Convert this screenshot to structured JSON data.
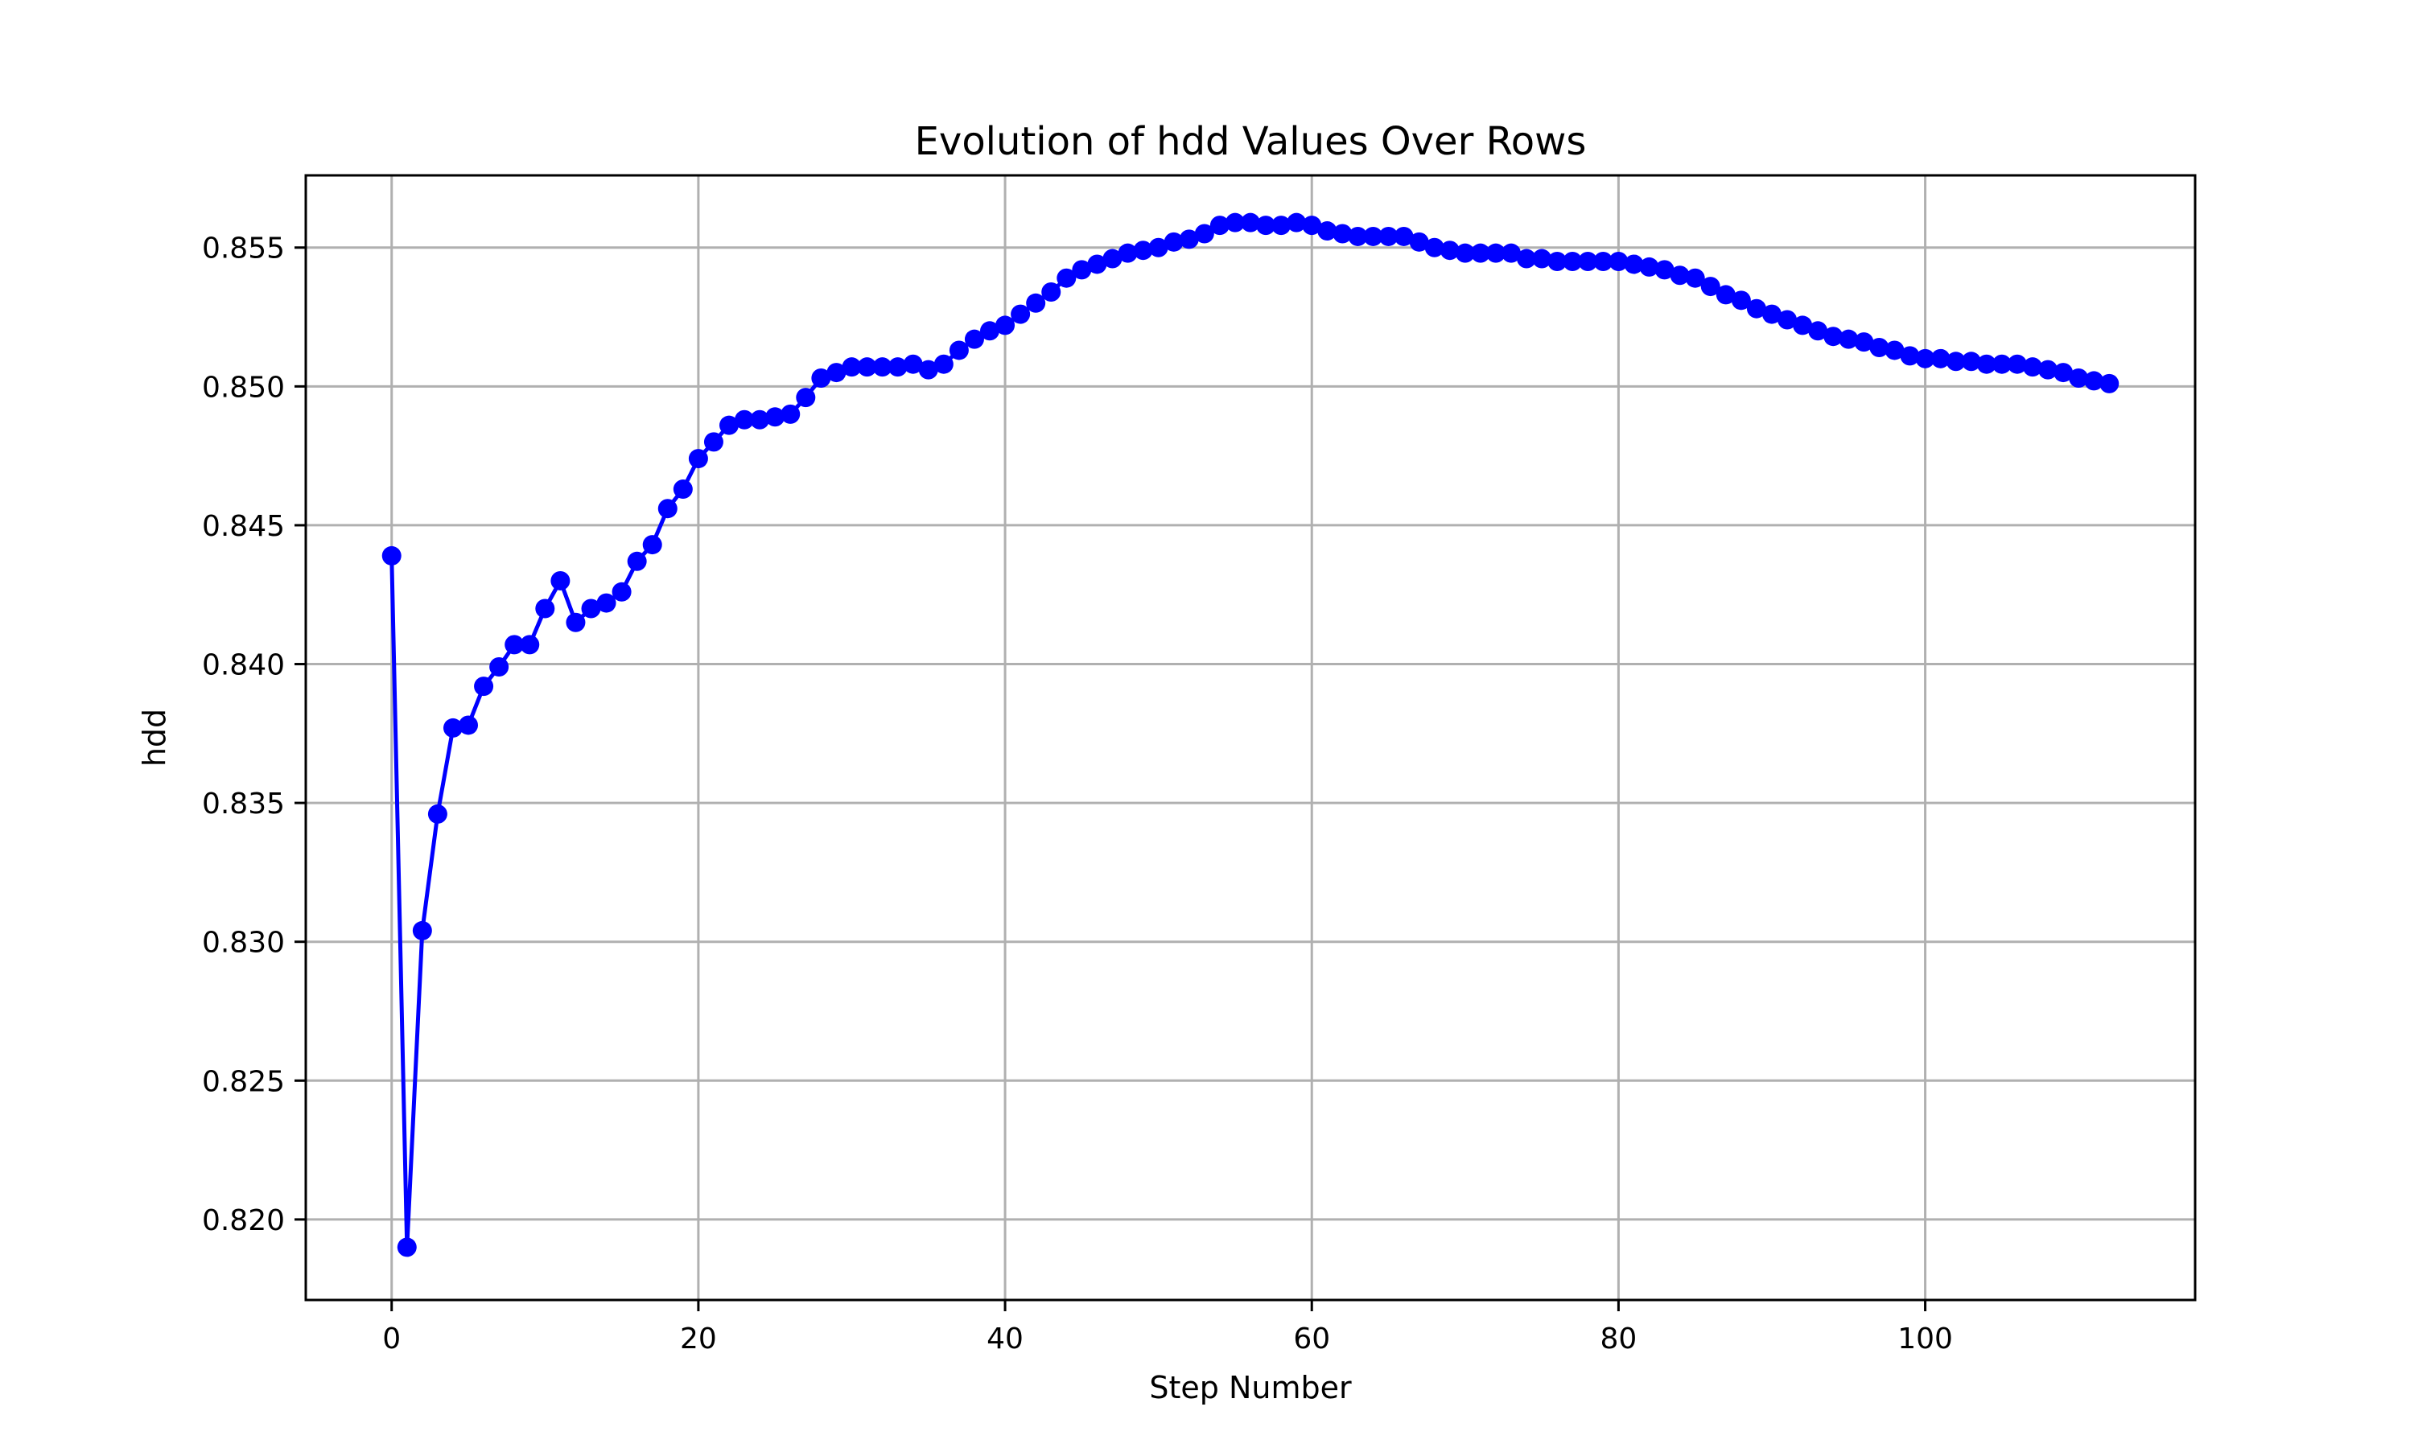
{
  "chart_data": {
    "type": "line",
    "title": "Evolution of hdd Values Over Rows",
    "xlabel": "Step Number",
    "ylabel": "hdd",
    "xlim": [
      -5.6,
      117.6
    ],
    "ylim": [
      0.8171,
      0.8576
    ],
    "xticks": [
      0,
      20,
      40,
      60,
      80,
      100
    ],
    "yticks": [
      0.82,
      0.825,
      0.83,
      0.835,
      0.84,
      0.845,
      0.85,
      0.855
    ],
    "xtick_labels": [
      "0",
      "20",
      "40",
      "60",
      "80",
      "100"
    ],
    "ytick_labels": [
      "0.820",
      "0.825",
      "0.830",
      "0.835",
      "0.840",
      "0.845",
      "0.850",
      "0.855"
    ],
    "grid": true,
    "series": [
      {
        "color": "#0000ff",
        "marker": "circle",
        "x": [
          0,
          1,
          2,
          3,
          4,
          5,
          6,
          7,
          8,
          9,
          10,
          11,
          12,
          13,
          14,
          15,
          16,
          17,
          18,
          19,
          20,
          21,
          22,
          23,
          24,
          25,
          26,
          27,
          28,
          29,
          30,
          31,
          32,
          33,
          34,
          35,
          36,
          37,
          38,
          39,
          40,
          41,
          42,
          43,
          44,
          45,
          46,
          47,
          48,
          49,
          50,
          51,
          52,
          53,
          54,
          55,
          56,
          57,
          58,
          59,
          60,
          61,
          62,
          63,
          64,
          65,
          66,
          67,
          68,
          69,
          70,
          71,
          72,
          73,
          74,
          75,
          76,
          77,
          78,
          79,
          80,
          81,
          82,
          83,
          84,
          85,
          86,
          87,
          88,
          89,
          90,
          91,
          92,
          93,
          94,
          95,
          96,
          97,
          98,
          99,
          100,
          101,
          102,
          103,
          104,
          105,
          106,
          107,
          108,
          109,
          110,
          111,
          112
        ],
        "y": [
          0.8439,
          0.819,
          0.8304,
          0.8346,
          0.8377,
          0.8378,
          0.8392,
          0.8399,
          0.8407,
          0.8407,
          0.842,
          0.843,
          0.8415,
          0.842,
          0.8422,
          0.8426,
          0.8437,
          0.8443,
          0.8456,
          0.8463,
          0.8474,
          0.848,
          0.8486,
          0.8488,
          0.8488,
          0.8489,
          0.849,
          0.8496,
          0.8503,
          0.8505,
          0.8507,
          0.8507,
          0.8507,
          0.8507,
          0.8508,
          0.8506,
          0.8508,
          0.8513,
          0.8517,
          0.852,
          0.8522,
          0.8526,
          0.853,
          0.8534,
          0.8539,
          0.8542,
          0.8544,
          0.8546,
          0.8548,
          0.8549,
          0.855,
          0.8552,
          0.8553,
          0.8555,
          0.8558,
          0.8559,
          0.8559,
          0.8558,
          0.8558,
          0.8559,
          0.8558,
          0.8556,
          0.8555,
          0.8554,
          0.8554,
          0.8554,
          0.8554,
          0.8552,
          0.855,
          0.8549,
          0.8548,
          0.8548,
          0.8548,
          0.8548,
          0.8546,
          0.8546,
          0.8545,
          0.8545,
          0.8545,
          0.8545,
          0.8545,
          0.8544,
          0.8543,
          0.8542,
          0.854,
          0.8539,
          0.8536,
          0.8533,
          0.8531,
          0.8528,
          0.8526,
          0.8524,
          0.8522,
          0.852,
          0.8518,
          0.8517,
          0.8516,
          0.8514,
          0.8513,
          0.8511,
          0.851,
          0.851,
          0.8509,
          0.8509,
          0.8508,
          0.8508,
          0.8508,
          0.8507,
          0.8506,
          0.8505,
          0.8503,
          0.8502,
          0.8501
        ]
      }
    ]
  }
}
